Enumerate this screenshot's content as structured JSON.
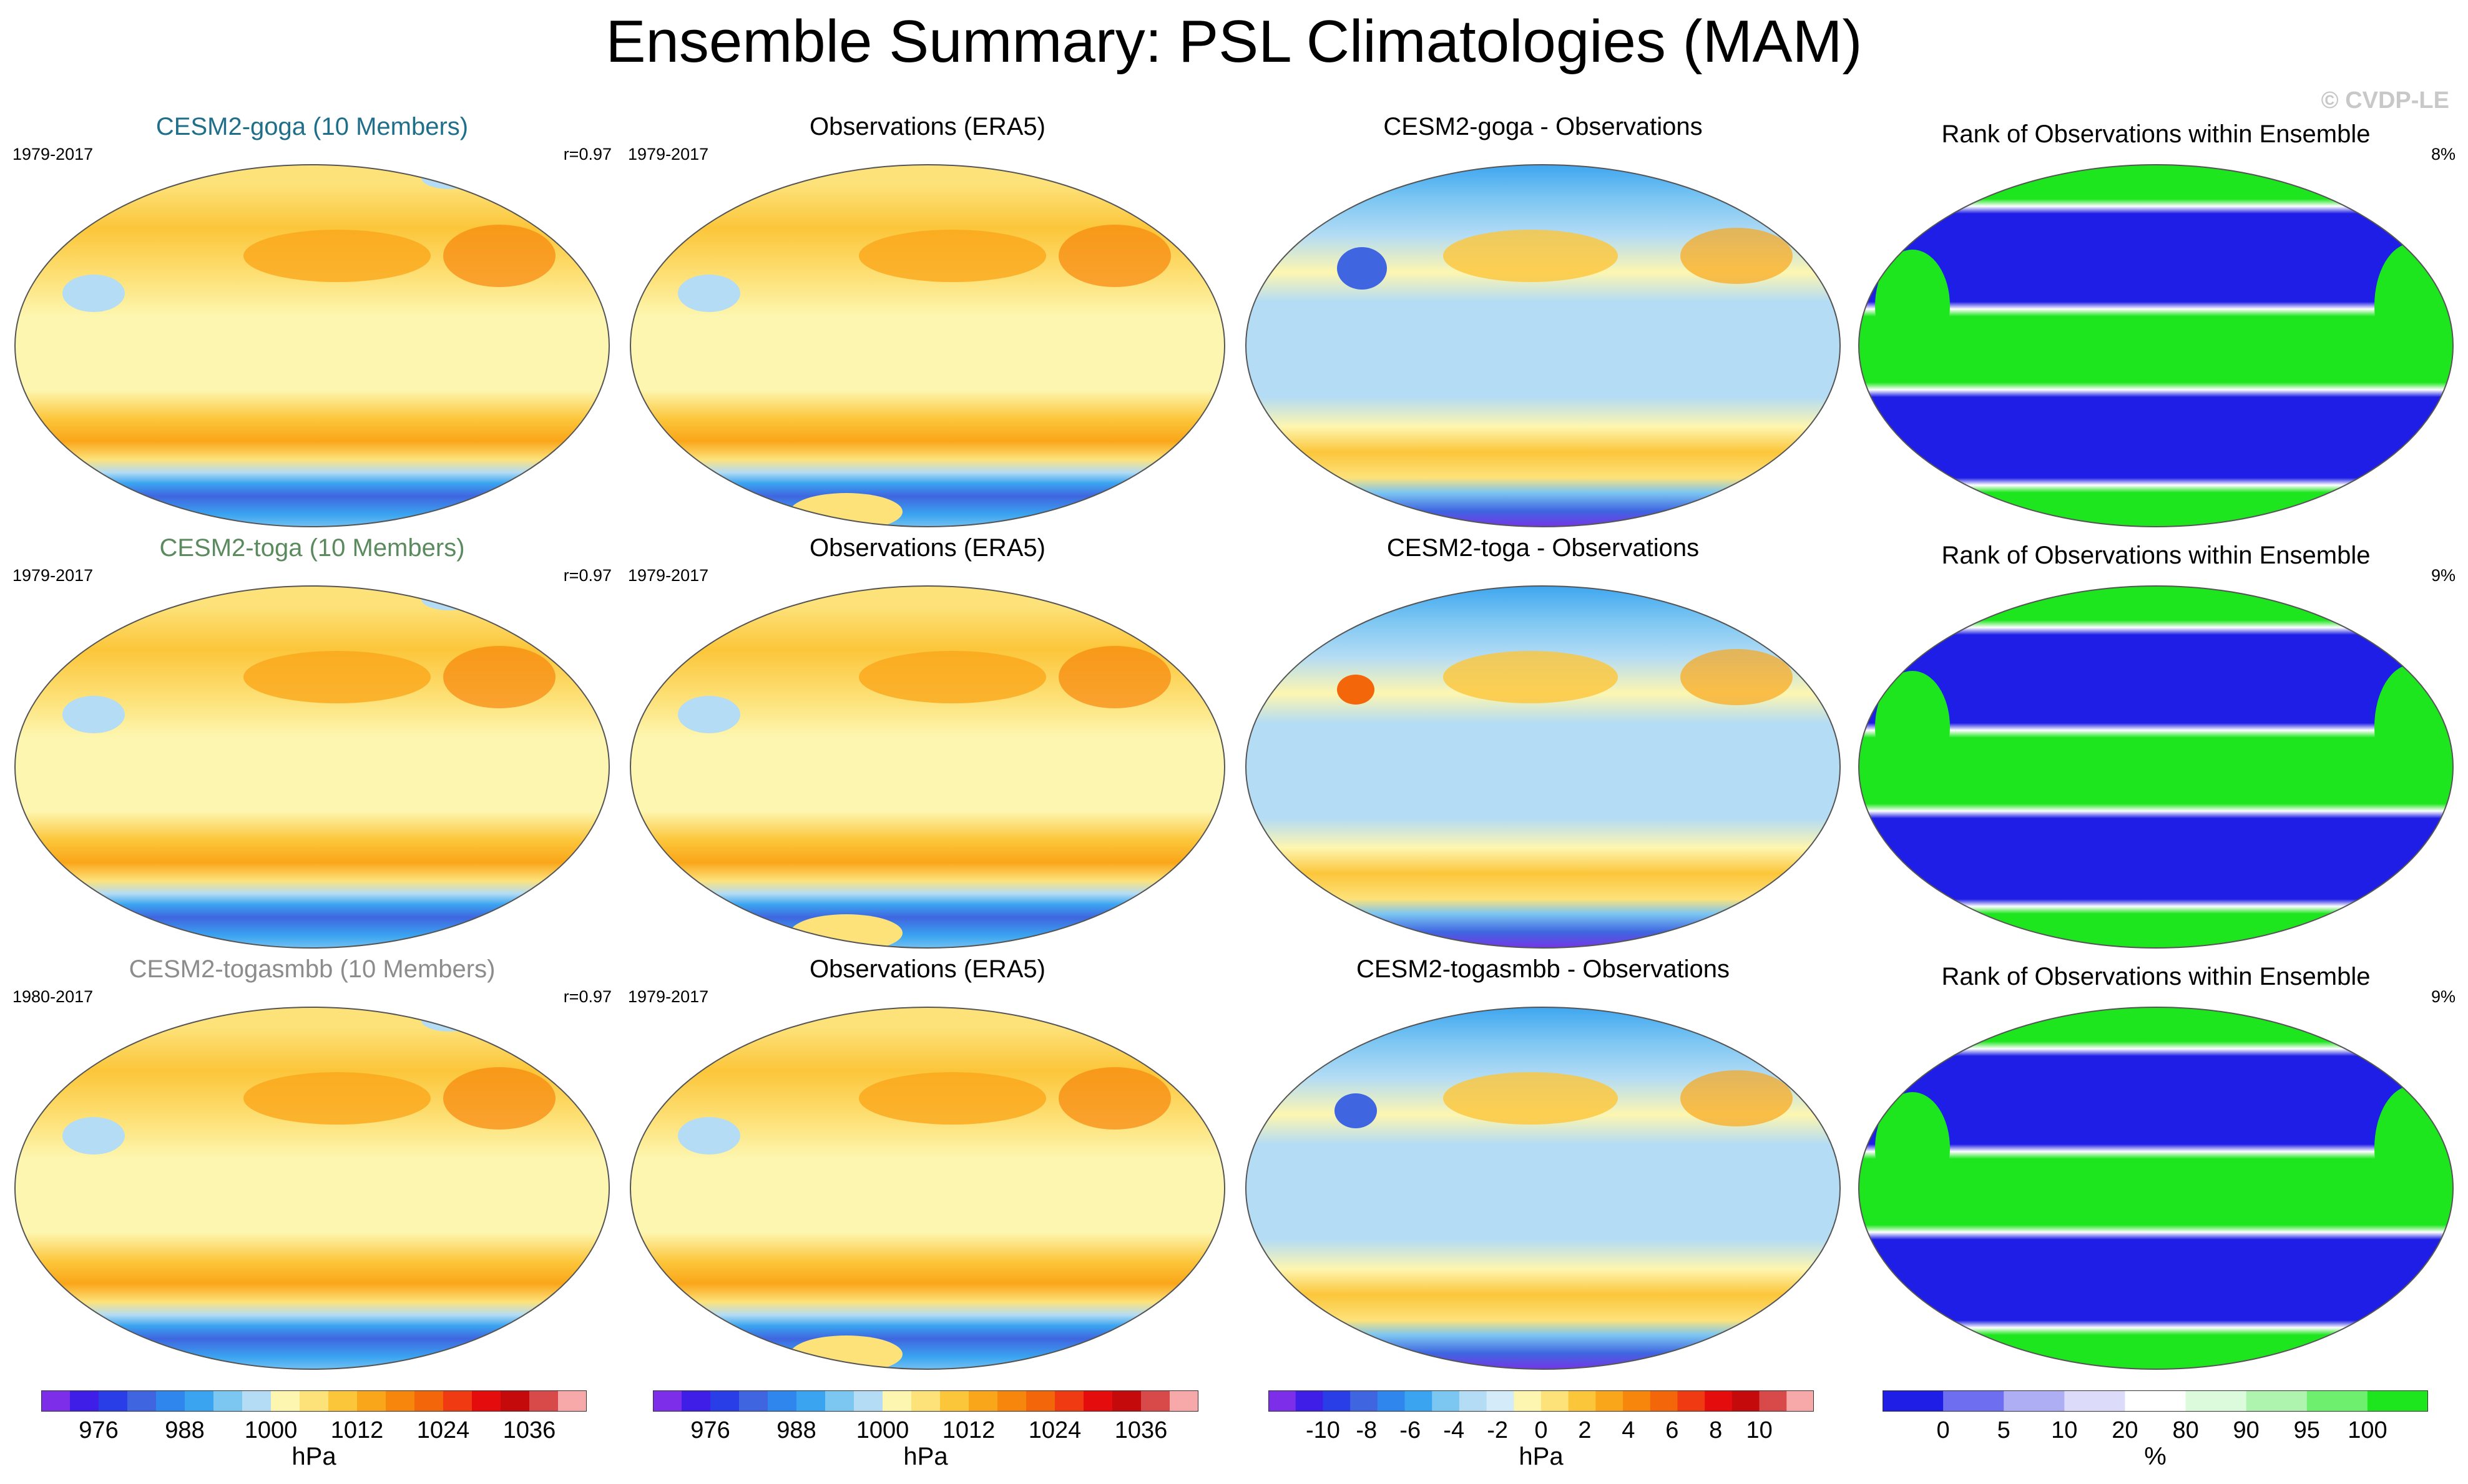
{
  "title": "Ensemble Summary: PSL Climatologies (MAM)",
  "watermark": "© CVDP-LE",
  "rows": [
    {
      "model": {
        "title": "CESM2-goga (10 Members)",
        "title_color": "#1f6f8b",
        "period": "1979-2017",
        "pattern_corr": "r=0.97"
      },
      "obs": {
        "title": "Observations (ERA5)",
        "period": "1979-2017"
      },
      "diff": {
        "title": "CESM2-goga - Observations"
      },
      "rank": {
        "title": "Rank of Observations within Ensemble",
        "percent": "8%"
      }
    },
    {
      "model": {
        "title": "CESM2-toga (10 Members)",
        "title_color": "#5b8a5e",
        "period": "1979-2017",
        "pattern_corr": "r=0.97"
      },
      "obs": {
        "title": "Observations (ERA5)",
        "period": "1979-2017"
      },
      "diff": {
        "title": "CESM2-toga - Observations"
      },
      "rank": {
        "title": "Rank of Observations within Ensemble",
        "percent": "9%"
      }
    },
    {
      "model": {
        "title": "CESM2-togasmbb (10 Members)",
        "title_color": "#8c8c8c",
        "period": "1980-2017",
        "pattern_corr": "r=0.97"
      },
      "obs": {
        "title": "Observations (ERA5)",
        "period": "1979-2017"
      },
      "diff": {
        "title": "CESM2-togasmbb - Observations"
      },
      "rank": {
        "title": "Rank of Observations within Ensemble",
        "percent": "9%"
      }
    }
  ],
  "colorbars": {
    "psl": {
      "units": "hPa",
      "colors": [
        "#7d2ee8",
        "#3f1ee8",
        "#2a3ee8",
        "#3f66e0",
        "#2f86ec",
        "#3aa4f0",
        "#7cc6f2",
        "#b4dcf4",
        "#fdf6b0",
        "#fde27a",
        "#fcc63a",
        "#faa61a",
        "#f7860c",
        "#f4660a",
        "#f03a12",
        "#e40c0c",
        "#c40a0a",
        "#d84a4a",
        "#f7a8a8"
      ],
      "labels": [
        "976",
        "988",
        "1000",
        "1012",
        "1024",
        "1036"
      ]
    },
    "diff": {
      "units": "hPa",
      "colors": [
        "#7d2ee8",
        "#3f1ee8",
        "#2a3ee8",
        "#3f66e0",
        "#2f86ec",
        "#3aa4f0",
        "#7cc6f2",
        "#b4dcf4",
        "#d4ecfa",
        "#fdf6b0",
        "#fde27a",
        "#fcc63a",
        "#faa61a",
        "#f7860c",
        "#f4660a",
        "#f03a12",
        "#e40c0c",
        "#c40a0a",
        "#d84a4a",
        "#f7a8a8"
      ],
      "labels": [
        "-10",
        "-8",
        "-6",
        "-4",
        "-2",
        "0",
        "2",
        "4",
        "6",
        "8",
        "10"
      ]
    },
    "rank": {
      "units": "%",
      "colors": [
        "#1e1ee6",
        "#6e6ef0",
        "#aeaef4",
        "#dcdcfa",
        "#ffffff",
        "#dcfadc",
        "#aef4ae",
        "#6ef06e",
        "#1ee61e"
      ],
      "labels": [
        "0",
        "5",
        "10",
        "20",
        "80",
        "90",
        "95",
        "100"
      ]
    }
  },
  "chart_data": [
    {
      "type": "heatmap",
      "panel": "CESM2-goga (10 Members)",
      "period": "1979-2017",
      "r": "r=0.97",
      "field": "PSL",
      "season": "MAM",
      "units": "hPa",
      "levels": [
        976,
        988,
        1000,
        1012,
        1024,
        1036
      ]
    },
    {
      "type": "heatmap",
      "panel": "Observations (ERA5)",
      "period": "1979-2017",
      "field": "PSL",
      "season": "MAM",
      "units": "hPa"
    },
    {
      "type": "heatmap",
      "panel": "CESM2-goga - Observations",
      "field": "PSL difference",
      "units": "hPa",
      "levels": [
        -10,
        -8,
        -6,
        -4,
        -2,
        0,
        2,
        4,
        6,
        8,
        10
      ]
    },
    {
      "type": "heatmap",
      "panel": "Rank of Observations within Ensemble",
      "percent": "8%",
      "units": "%",
      "levels": [
        0,
        5,
        10,
        20,
        80,
        90,
        95,
        100
      ]
    },
    {
      "type": "heatmap",
      "panel": "CESM2-toga (10 Members)",
      "period": "1979-2017",
      "r": "r=0.97",
      "field": "PSL",
      "season": "MAM",
      "units": "hPa"
    },
    {
      "type": "heatmap",
      "panel": "Observations (ERA5)",
      "period": "1979-2017",
      "field": "PSL",
      "season": "MAM",
      "units": "hPa"
    },
    {
      "type": "heatmap",
      "panel": "CESM2-toga - Observations",
      "field": "PSL difference",
      "units": "hPa"
    },
    {
      "type": "heatmap",
      "panel": "Rank of Observations within Ensemble",
      "percent": "9%",
      "units": "%"
    },
    {
      "type": "heatmap",
      "panel": "CESM2-togasmbb (10 Members)",
      "period": "1980-2017",
      "r": "r=0.97",
      "field": "PSL",
      "season": "MAM",
      "units": "hPa"
    },
    {
      "type": "heatmap",
      "panel": "Observations (ERA5)",
      "period": "1979-2017",
      "field": "PSL",
      "season": "MAM",
      "units": "hPa"
    },
    {
      "type": "heatmap",
      "panel": "CESM2-togasmbb - Observations",
      "field": "PSL difference",
      "units": "hPa"
    },
    {
      "type": "heatmap",
      "panel": "Rank of Observations within Ensemble",
      "percent": "9%",
      "units": "%"
    }
  ]
}
